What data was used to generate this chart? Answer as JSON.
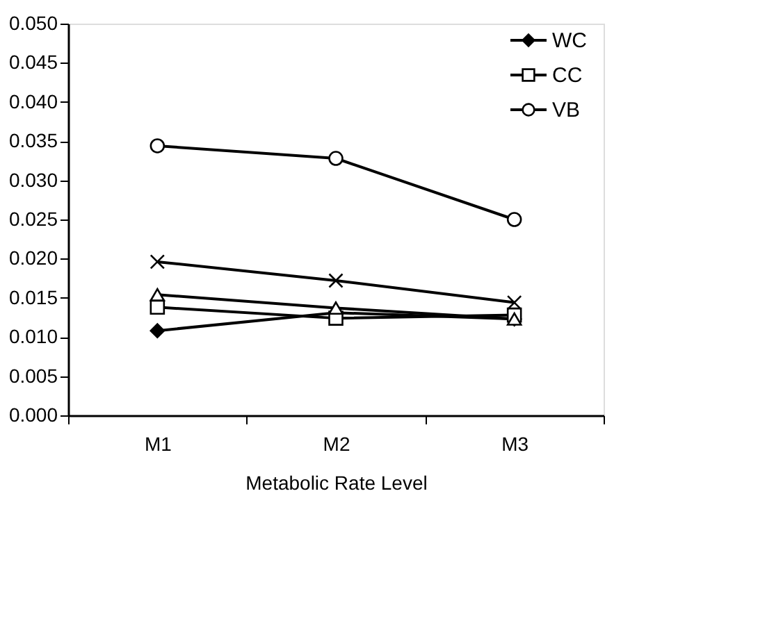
{
  "chart_data": {
    "type": "line",
    "xlabel": "Metabolic Rate Level",
    "categories": [
      "M1",
      "M2",
      "M3"
    ],
    "ylim": [
      0,
      0.05
    ],
    "yticks": [
      {
        "value": 0,
        "label": "0.000"
      },
      {
        "value": 0.005,
        "label": "0.005"
      },
      {
        "value": 0.01,
        "label": "0.010"
      },
      {
        "value": 0.015,
        "label": "0.015"
      },
      {
        "value": 0.02,
        "label": "0.020"
      },
      {
        "value": 0.025,
        "label": "0.025"
      },
      {
        "value": 0.03,
        "label": "0.030"
      },
      {
        "value": 0.035,
        "label": "0.035"
      },
      {
        "value": 0.04,
        "label": "0.040"
      },
      {
        "value": 0.045,
        "label": "0.045"
      },
      {
        "value": 0.05,
        "label": "0.050"
      }
    ],
    "grid": false,
    "legend": "top right",
    "line_style": "solid",
    "series": [
      {
        "name": "WC",
        "color": "#000000",
        "marker": "diamond",
        "values": [
          0.0108,
          0.0131,
          0.0123
        ]
      },
      {
        "name": "CC",
        "color": "#000000",
        "marker": "square",
        "values": [
          0.0138,
          0.0124,
          0.0128
        ]
      },
      {
        "color": "#000000",
        "marker": "triangle",
        "values": [
          0.0154,
          0.0137,
          0.0123
        ]
      },
      {
        "color": "#000000",
        "marker": "cross",
        "values": [
          0.0196,
          0.0172,
          0.0144
        ]
      },
      {
        "name": "VB",
        "color": "#000000",
        "marker": "circle",
        "values": [
          0.0344,
          0.0328,
          0.025
        ]
      }
    ]
  }
}
